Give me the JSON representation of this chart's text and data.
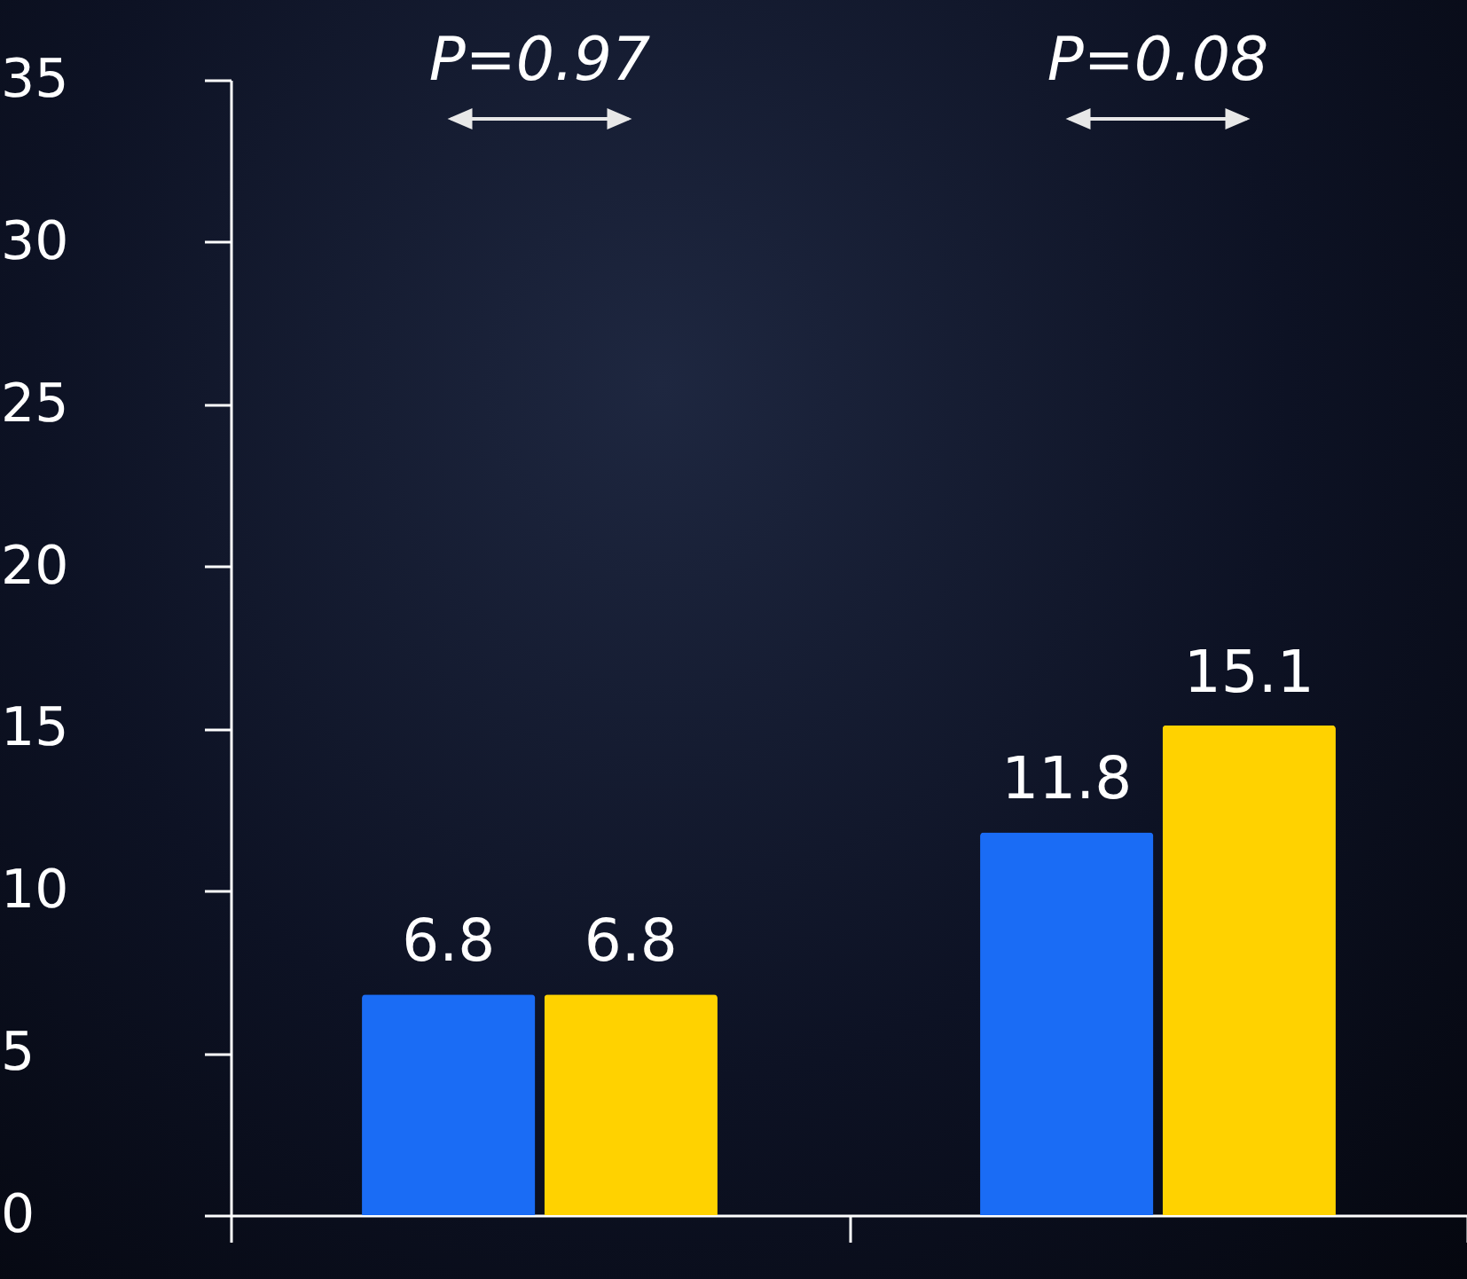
{
  "chart_data": {
    "type": "bar",
    "categories": [
      null,
      null
    ],
    "series": [
      {
        "color": "#1a6cf5",
        "values": [
          6.8,
          11.8
        ]
      },
      {
        "color": "#ffd200",
        "values": [
          6.8,
          15.1
        ]
      }
    ],
    "ylim": [
      0,
      35
    ],
    "yticks": [
      0,
      5,
      10,
      15,
      20,
      25,
      30,
      35
    ],
    "data_labels": true,
    "tick_labels": "y",
    "annotations": [
      "P=0.97",
      "P=0.08"
    ]
  }
}
